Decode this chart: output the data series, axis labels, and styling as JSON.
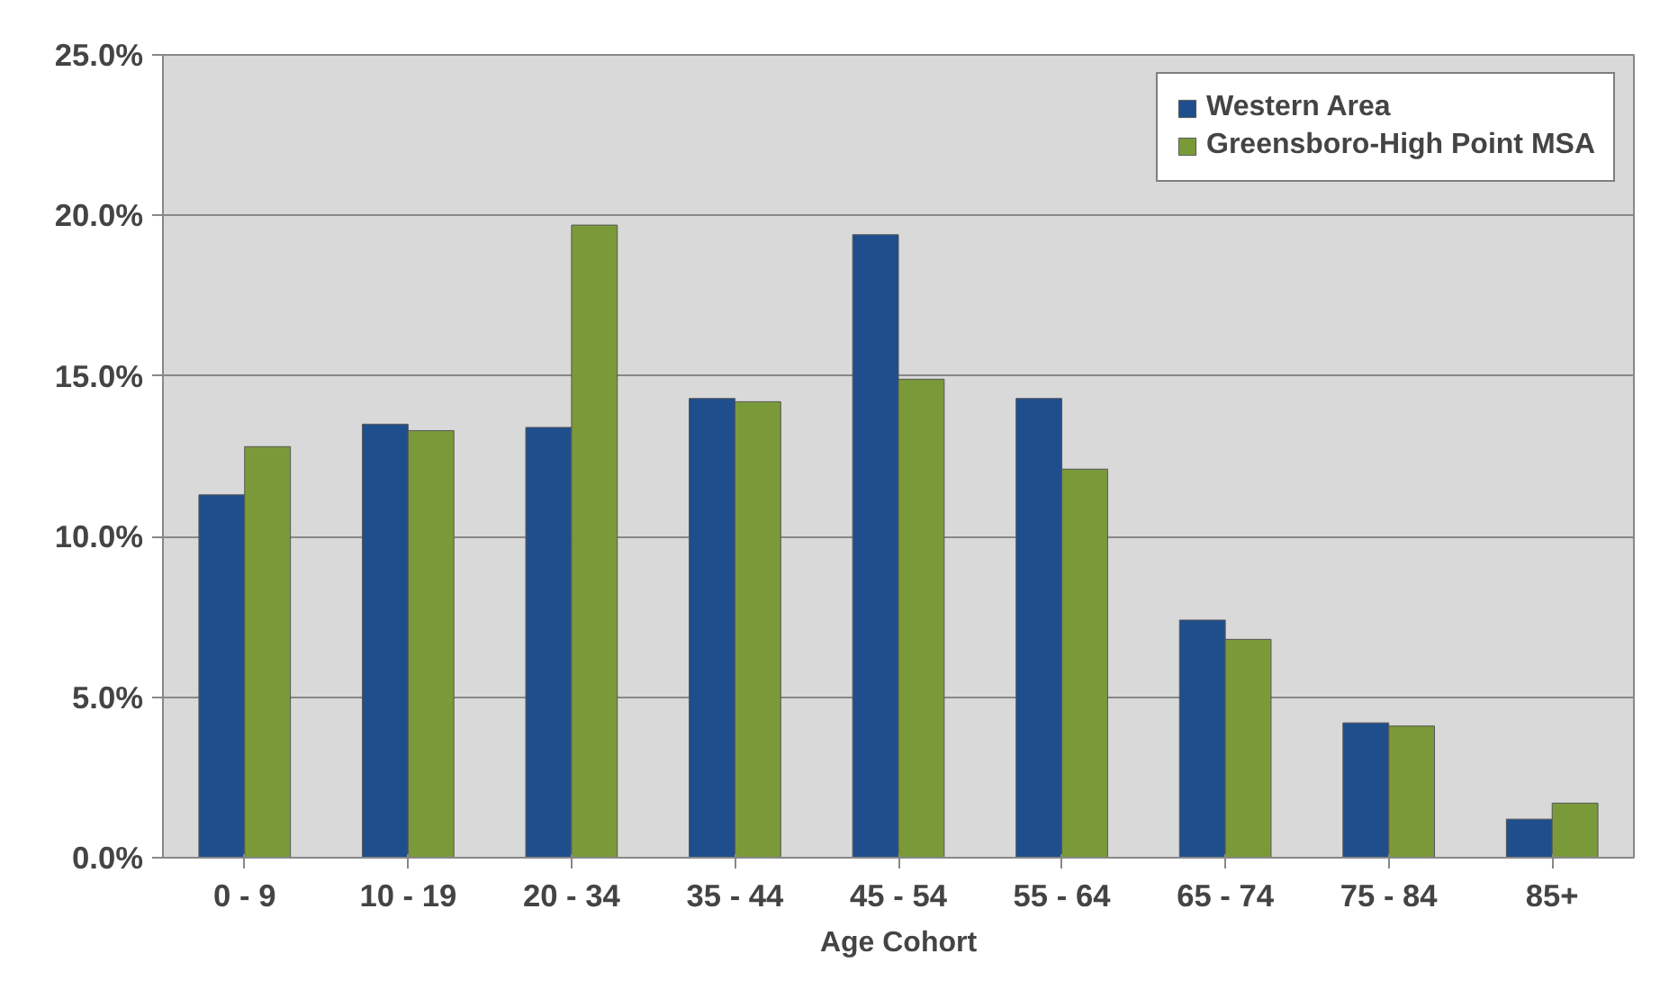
{
  "chart_data": {
    "type": "bar",
    "xlabel": "Age Cohort",
    "categories": [
      "0 - 9",
      "10 - 19",
      "20 - 34",
      "35 - 44",
      "45 - 54",
      "55 - 64",
      "65 - 74",
      "75 - 84",
      "85+"
    ],
    "series": [
      {
        "name": "Western Area",
        "color": "#1f4e8c",
        "values": [
          11.3,
          13.5,
          13.4,
          14.3,
          19.4,
          14.3,
          7.4,
          4.2,
          1.2
        ]
      },
      {
        "name": "Greensboro-High Point MSA",
        "color": "#7a9a3a",
        "values": [
          12.8,
          13.3,
          19.7,
          14.2,
          14.9,
          12.1,
          6.8,
          4.1,
          1.7
        ]
      }
    ],
    "ylim": [
      0,
      25
    ],
    "yticks": [
      {
        "value": 0,
        "label": "0.0%"
      },
      {
        "value": 5,
        "label": "5.0%"
      },
      {
        "value": 10,
        "label": "10.0%"
      },
      {
        "value": 15,
        "label": "15.0%"
      },
      {
        "value": 20,
        "label": "20.0%"
      },
      {
        "value": 25,
        "label": "25.0%"
      }
    ],
    "grid": "y",
    "legend": "top right"
  }
}
